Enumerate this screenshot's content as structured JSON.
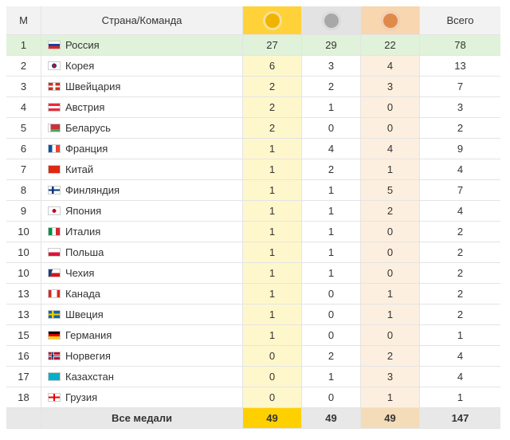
{
  "table": {
    "header": [
      "М",
      "Страна/Команда",
      "Всего"
    ],
    "rows": [
      [
        1,
        "Россия",
        27,
        29,
        22,
        78
      ],
      [
        2,
        "Корея",
        6,
        3,
        4,
        13
      ],
      [
        3,
        "Швейцария",
        2,
        2,
        3,
        7
      ],
      [
        4,
        "Австрия",
        2,
        1,
        0,
        3
      ],
      [
        5,
        "Беларусь",
        2,
        0,
        0,
        2
      ],
      [
        6,
        "Франция",
        1,
        4,
        4,
        9
      ],
      [
        7,
        "Китай",
        1,
        2,
        1,
        4
      ],
      [
        8,
        "Финляндия",
        1,
        1,
        5,
        7
      ],
      [
        9,
        "Япония",
        1,
        1,
        2,
        4
      ],
      [
        10,
        "Италия",
        1,
        1,
        0,
        2
      ],
      [
        10,
        "Польша",
        1,
        1,
        0,
        2
      ],
      [
        10,
        "Чехия",
        1,
        1,
        0,
        2
      ],
      [
        13,
        "Канада",
        1,
        0,
        1,
        2
      ],
      [
        13,
        "Швеция",
        1,
        0,
        1,
        2
      ],
      [
        15,
        "Германия",
        1,
        0,
        0,
        1
      ],
      [
        16,
        "Норвегия",
        0,
        2,
        2,
        4
      ],
      [
        17,
        "Казахстан",
        0,
        1,
        3,
        4
      ],
      [
        18,
        "Грузия",
        0,
        0,
        1,
        1
      ]
    ],
    "footer": {
      "label": "Все медали",
      "gold": 49,
      "silver": 49,
      "bronze": 49,
      "total": 147
    }
  }
}
